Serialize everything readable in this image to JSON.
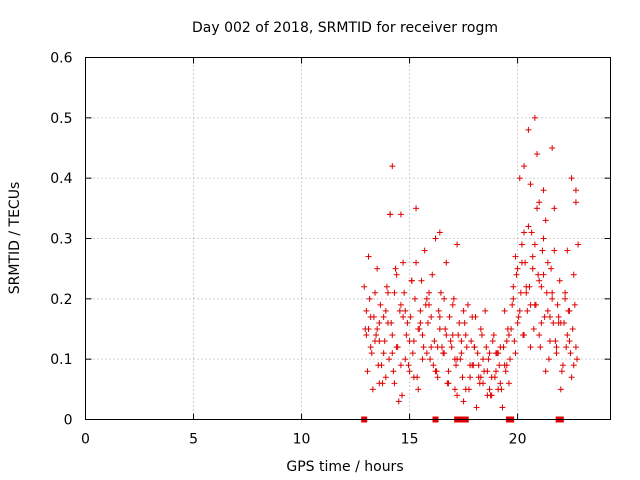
{
  "chart_data": {
    "type": "scatter",
    "title": "Day 002 of 2018, SRMTID for receiver rogm",
    "xlabel": "GPS time / hours",
    "ylabel": "SRMTID / TECUs",
    "xlim": [
      0,
      24.3
    ],
    "ylim": [
      0,
      0.6
    ],
    "xticks": [
      0,
      5,
      10,
      15,
      20
    ],
    "yticks": [
      0,
      0.1,
      0.2,
      0.3,
      0.4,
      0.5,
      0.6
    ],
    "grid": true,
    "marker_color": "#e00000",
    "zero_markers_x": [
      12.9,
      16.2,
      17.2,
      17.4,
      17.6,
      19.6,
      19.7,
      21.9,
      22.0
    ],
    "series": [
      {
        "name": "SRMTID",
        "x": [
          12.9,
          13.0,
          13.1,
          13.2,
          13.3,
          13.4,
          13.5,
          13.6,
          13.7,
          13.8,
          13.9,
          14.0,
          14.1,
          14.2,
          14.3,
          14.4,
          14.5,
          14.6,
          14.7,
          14.8,
          14.9,
          15.0,
          15.1,
          15.2,
          15.3,
          15.4,
          15.5,
          15.6,
          15.7,
          15.8,
          15.9,
          16.0,
          16.1,
          16.2,
          16.3,
          16.4,
          16.5,
          16.6,
          16.7,
          16.8,
          16.9,
          17.0,
          17.1,
          17.2,
          17.3,
          17.4,
          17.5,
          17.6,
          17.7,
          17.8,
          17.9,
          18.0,
          18.1,
          18.2,
          18.3,
          18.4,
          18.5,
          18.6,
          18.7,
          18.8,
          18.9,
          19.0,
          19.1,
          19.2,
          19.3,
          19.4,
          19.5,
          19.6,
          19.7,
          19.8,
          19.9,
          20.0,
          20.1,
          20.2,
          20.3,
          20.4,
          20.5,
          20.6,
          20.7,
          20.8,
          20.9,
          21.0,
          21.1,
          21.2,
          21.3,
          21.4,
          21.5,
          21.6,
          21.7,
          21.8,
          21.9,
          22.0,
          22.1,
          22.2,
          22.3,
          22.4,
          22.5,
          22.6,
          22.7,
          22.8,
          12.95,
          13.05,
          13.15,
          13.25,
          13.35,
          13.45,
          13.55,
          13.65,
          13.75,
          13.85,
          13.95,
          14.05,
          14.15,
          14.25,
          14.35,
          14.45,
          14.55,
          14.65,
          14.75,
          14.85,
          14.95,
          15.05,
          15.15,
          15.25,
          15.35,
          15.45,
          15.55,
          15.65,
          15.75,
          15.85,
          15.95,
          16.05,
          16.15,
          16.25,
          16.35,
          16.45,
          16.55,
          16.65,
          16.75,
          16.85,
          16.95,
          17.05,
          17.15,
          17.25,
          17.35,
          17.45,
          17.55,
          17.65,
          17.75,
          17.85,
          17.95,
          18.05,
          18.15,
          18.25,
          18.35,
          18.45,
          18.55,
          18.65,
          18.75,
          18.85,
          18.95,
          19.05,
          19.15,
          19.25,
          19.35,
          19.45,
          19.55,
          19.65,
          19.75,
          19.85,
          19.95,
          20.05,
          20.15,
          20.25,
          20.35,
          20.45,
          20.55,
          20.65,
          20.75,
          20.85,
          20.95,
          21.05,
          21.15,
          21.25,
          21.35,
          21.45,
          21.55,
          21.65,
          21.75,
          21.85,
          21.95,
          22.05,
          22.15,
          22.25,
          22.35,
          22.45,
          22.55,
          22.65,
          22.75,
          13.0,
          13.2,
          13.4,
          13.6,
          13.8,
          14.0,
          14.2,
          14.4,
          14.6,
          14.8,
          15.0,
          15.2,
          15.4,
          15.6,
          15.8,
          16.0,
          16.2,
          16.4,
          16.6,
          16.8,
          17.0,
          17.2,
          17.4,
          17.6,
          17.8,
          18.0,
          18.2,
          18.4,
          18.6,
          18.8,
          19.0,
          19.2,
          19.4,
          19.6,
          19.8,
          20.0,
          20.2,
          20.4,
          20.6,
          20.8,
          21.0,
          21.2,
          21.4,
          21.6,
          21.8,
          22.0,
          22.2,
          22.4,
          22.6,
          13.1,
          13.5,
          13.9,
          14.3,
          14.7,
          15.1,
          15.5,
          15.9,
          16.3,
          16.7,
          17.1,
          17.5,
          17.9,
          18.3,
          18.7,
          19.1,
          19.5,
          19.9,
          20.3,
          20.7,
          21.1,
          21.5,
          21.9,
          22.3,
          22.7,
          14.2,
          14.6,
          15.3,
          16.4,
          20.1,
          20.5,
          20.8,
          20.9,
          21.0,
          21.2,
          21.6,
          22.7,
          20.3,
          20.6,
          21.3,
          21.7,
          22.5,
          14.1,
          13.6,
          17.2
        ],
        "y": [
          0.22,
          0.18,
          0.27,
          0.12,
          0.05,
          0.21,
          0.15,
          0.13,
          0.09,
          0.17,
          0.07,
          0.21,
          0.34,
          0.11,
          0.06,
          0.24,
          0.03,
          0.19,
          0.26,
          0.1,
          0.16,
          0.08,
          0.23,
          0.13,
          0.26,
          0.05,
          0.18,
          0.14,
          0.28,
          0.11,
          0.21,
          0.17,
          0.09,
          0.3,
          0.07,
          0.15,
          0.12,
          0.2,
          0.26,
          0.08,
          0.13,
          0.19,
          0.05,
          0.29,
          0.16,
          0.11,
          0.03,
          0.14,
          0.19,
          0.07,
          0.17,
          0.12,
          0.02,
          0.09,
          0.15,
          0.06,
          0.18,
          0.04,
          0.11,
          0.07,
          0.14,
          0.08,
          0.05,
          0.12,
          0.02,
          0.18,
          0.09,
          0.06,
          0.15,
          0.22,
          0.11,
          0.25,
          0.18,
          0.29,
          0.14,
          0.21,
          0.32,
          0.12,
          0.27,
          0.19,
          0.35,
          0.23,
          0.16,
          0.3,
          0.08,
          0.26,
          0.13,
          0.2,
          0.28,
          0.11,
          0.17,
          0.05,
          0.09,
          0.21,
          0.14,
          0.18,
          0.07,
          0.24,
          0.12,
          0.29,
          0.15,
          0.08,
          0.2,
          0.11,
          0.17,
          0.14,
          0.09,
          0.19,
          0.06,
          0.13,
          0.22,
          0.1,
          0.16,
          0.08,
          0.25,
          0.12,
          0.18,
          0.04,
          0.21,
          0.14,
          0.09,
          0.17,
          0.11,
          0.2,
          0.07,
          0.15,
          0.23,
          0.12,
          0.19,
          0.16,
          0.1,
          0.24,
          0.13,
          0.08,
          0.18,
          0.21,
          0.11,
          0.15,
          0.06,
          0.17,
          0.12,
          0.2,
          0.09,
          0.14,
          0.1,
          0.07,
          0.16,
          0.12,
          0.05,
          0.13,
          0.09,
          0.17,
          0.11,
          0.06,
          0.14,
          0.08,
          0.12,
          0.1,
          0.04,
          0.13,
          0.07,
          0.11,
          0.09,
          0.05,
          0.12,
          0.08,
          0.15,
          0.1,
          0.19,
          0.13,
          0.24,
          0.17,
          0.21,
          0.14,
          0.26,
          0.18,
          0.22,
          0.31,
          0.15,
          0.19,
          0.24,
          0.12,
          0.28,
          0.17,
          0.21,
          0.1,
          0.25,
          0.16,
          0.13,
          0.19,
          0.23,
          0.08,
          0.16,
          0.12,
          0.18,
          0.11,
          0.15,
          0.19,
          0.1,
          0.14,
          0.17,
          0.13,
          0.06,
          0.11,
          0.16,
          0.14,
          0.12,
          0.09,
          0.18,
          0.13,
          0.07,
          0.15,
          0.1,
          0.2,
          0.12,
          0.08,
          0.17,
          0.11,
          0.06,
          0.14,
          0.1,
          0.13,
          0.05,
          0.09,
          0.12,
          0.07,
          0.1,
          0.08,
          0.04,
          0.11,
          0.06,
          0.09,
          0.14,
          0.2,
          0.16,
          0.26,
          0.22,
          0.19,
          0.29,
          0.14,
          0.24,
          0.18,
          0.21,
          0.12,
          0.16,
          0.2,
          0.13,
          0.09,
          0.15,
          0.25,
          0.18,
          0.21,
          0.17,
          0.23,
          0.16,
          0.19,
          0.12,
          0.14,
          0.1,
          0.18,
          0.09,
          0.07,
          0.05,
          0.11,
          0.13,
          0.27,
          0.31,
          0.25,
          0.22,
          0.17,
          0.16,
          0.28,
          0.38,
          0.42,
          0.34,
          0.35,
          0.31,
          0.4,
          0.48,
          0.5,
          0.44,
          0.36,
          0.38,
          0.45,
          0.36,
          0.42,
          0.39,
          0.33,
          0.35,
          0.4,
          0.34,
          0.16,
          0.04
        ],
        "marker": "+"
      }
    ]
  }
}
